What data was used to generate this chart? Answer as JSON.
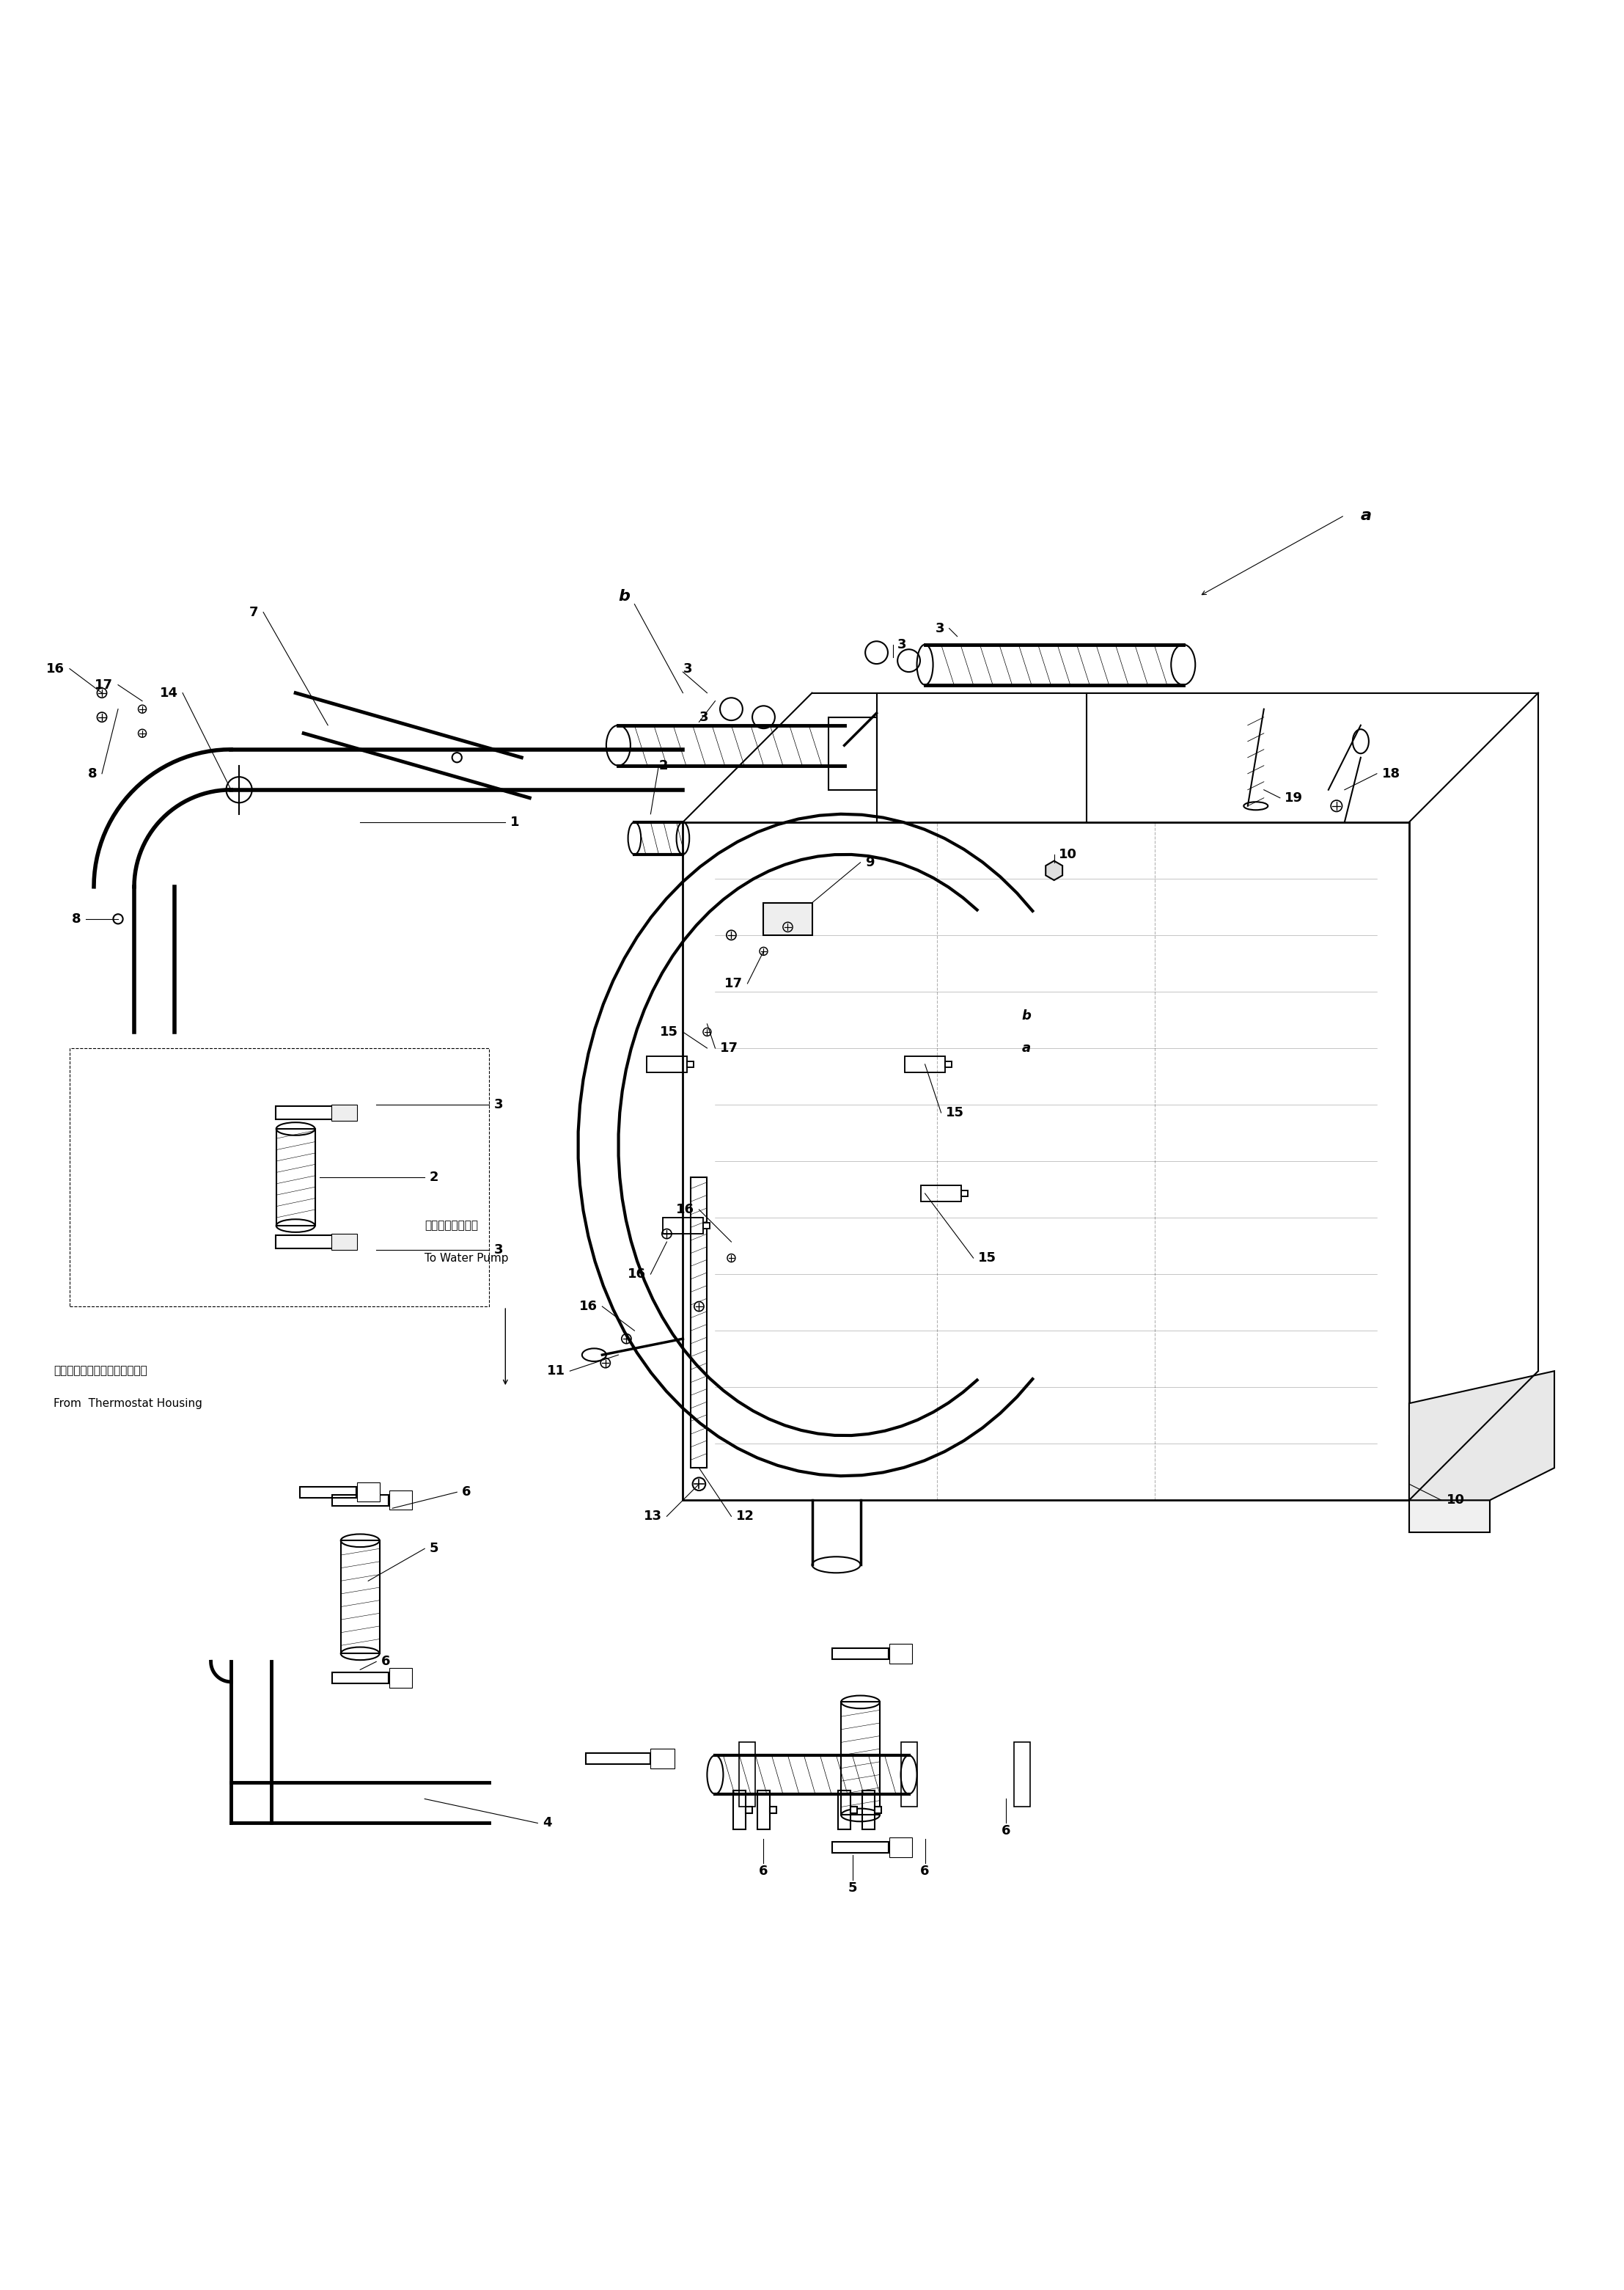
{
  "bg_color": "#ffffff",
  "line_color": "#000000",
  "line_width": 1.5,
  "thin_line": 0.8,
  "label_fontsize": 13,
  "small_fontsize": 11,
  "japanese_text1": "サーモスタットハウジングから",
  "english_text1": "From  Thermostat Housing",
  "japanese_text2": "ウォータポンプへ",
  "english_text2": "To Water Pump",
  "fig_width": 22.15,
  "fig_height": 31.22
}
